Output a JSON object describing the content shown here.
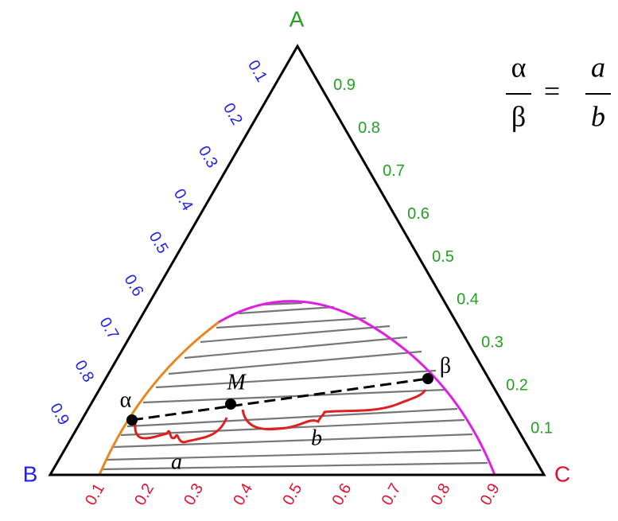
{
  "vertices": {
    "top": "A",
    "left": "B",
    "right": "C"
  },
  "axes": {
    "left_ticks": [
      "0.1",
      "0.2",
      "0.3",
      "0.4",
      "0.5",
      "0.6",
      "0.7",
      "0.8",
      "0.9"
    ],
    "right_ticks": [
      "0.9",
      "0.8",
      "0.7",
      "0.6",
      "0.5",
      "0.4",
      "0.3",
      "0.2",
      "0.1"
    ],
    "bottom_ticks": [
      "0.1",
      "0.2",
      "0.3",
      "0.4",
      "0.5",
      "0.6",
      "0.7",
      "0.8",
      "0.9"
    ]
  },
  "points": {
    "alpha": "α",
    "beta": "β",
    "mix": "M"
  },
  "segments": {
    "a": "a",
    "b": "b"
  },
  "equation": {
    "lhs_num": "α",
    "lhs_den": "β",
    "equals": "=",
    "rhs_num": "a",
    "rhs_den": "b"
  }
}
